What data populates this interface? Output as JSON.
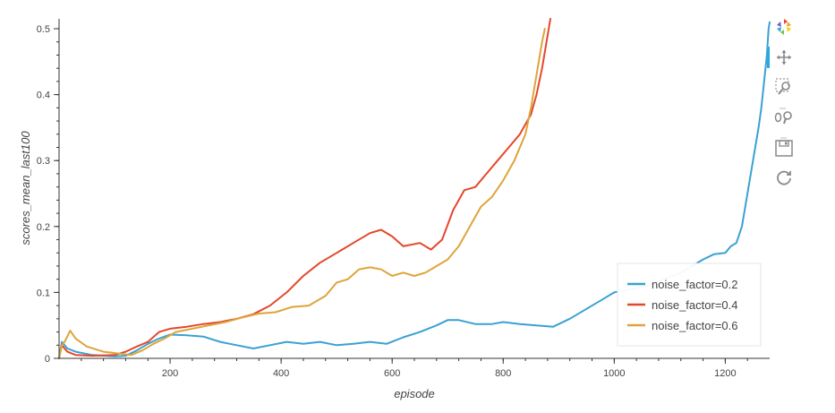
{
  "chart_data": {
    "type": "line",
    "title": "",
    "xlabel": "episode",
    "ylabel": "scores_mean_last100",
    "xlim": [
      0,
      1280
    ],
    "ylim": [
      0,
      0.515
    ],
    "x_ticks": [
      200,
      400,
      600,
      800,
      1000,
      1200
    ],
    "y_ticks": [
      0,
      0.1,
      0.2,
      0.3,
      0.4,
      0.5
    ],
    "x_tick_labels": [
      "200",
      "400",
      "600",
      "800",
      "1000",
      "1200"
    ],
    "y_tick_labels": [
      "0",
      "0.1",
      "0.2",
      "0.3",
      "0.4",
      "0.5"
    ],
    "grid": false,
    "legend_position": "bottom-right",
    "series": [
      {
        "name": "noise_factor=0.2",
        "color": "#3aa1d3",
        "x": [
          0,
          5,
          15,
          30,
          60,
          100,
          120,
          140,
          160,
          180,
          200,
          230,
          260,
          290,
          320,
          350,
          380,
          410,
          440,
          470,
          500,
          530,
          560,
          590,
          620,
          650,
          680,
          700,
          720,
          750,
          780,
          800,
          830,
          860,
          890,
          920,
          950,
          980,
          1000,
          1030,
          1060,
          1090,
          1120,
          1140,
          1160,
          1180,
          1200,
          1210,
          1220,
          1230,
          1240,
          1250,
          1260,
          1265,
          1270,
          1275,
          1278,
          1280
        ],
        "y": [
          0.0,
          0.025,
          0.015,
          0.01,
          0.005,
          0.003,
          0.004,
          0.012,
          0.022,
          0.03,
          0.036,
          0.035,
          0.033,
          0.025,
          0.02,
          0.015,
          0.02,
          0.025,
          0.022,
          0.025,
          0.02,
          0.022,
          0.025,
          0.022,
          0.032,
          0.04,
          0.05,
          0.058,
          0.058,
          0.052,
          0.052,
          0.055,
          0.052,
          0.05,
          0.048,
          0.06,
          0.075,
          0.09,
          0.1,
          0.105,
          0.11,
          0.12,
          0.13,
          0.14,
          0.15,
          0.158,
          0.16,
          0.17,
          0.175,
          0.2,
          0.25,
          0.3,
          0.35,
          0.38,
          0.42,
          0.46,
          0.5,
          0.51
        ]
      },
      {
        "name": "noise_factor=0.4",
        "color": "#e5472b",
        "x": [
          0,
          5,
          15,
          30,
          60,
          100,
          120,
          140,
          160,
          180,
          200,
          230,
          260,
          290,
          320,
          350,
          380,
          410,
          440,
          470,
          500,
          530,
          560,
          580,
          600,
          620,
          650,
          670,
          690,
          710,
          730,
          750,
          770,
          790,
          810,
          830,
          850,
          860,
          870,
          880,
          885
        ],
        "y": [
          0.0,
          0.02,
          0.01,
          0.005,
          0.004,
          0.005,
          0.01,
          0.018,
          0.025,
          0.04,
          0.045,
          0.048,
          0.052,
          0.055,
          0.06,
          0.067,
          0.08,
          0.1,
          0.125,
          0.145,
          0.16,
          0.175,
          0.19,
          0.195,
          0.185,
          0.17,
          0.175,
          0.165,
          0.18,
          0.225,
          0.255,
          0.26,
          0.28,
          0.3,
          0.32,
          0.34,
          0.37,
          0.4,
          0.44,
          0.49,
          0.515
        ]
      },
      {
        "name": "noise_factor=0.6",
        "color": "#dda53a",
        "x": [
          0,
          5,
          10,
          20,
          30,
          50,
          80,
          110,
          130,
          150,
          170,
          190,
          210,
          240,
          270,
          300,
          330,
          360,
          390,
          420,
          450,
          480,
          500,
          520,
          540,
          560,
          580,
          600,
          620,
          640,
          660,
          680,
          700,
          720,
          740,
          760,
          780,
          800,
          820,
          840,
          850,
          860,
          870,
          875
        ],
        "y": [
          0.0,
          0.02,
          0.025,
          0.042,
          0.03,
          0.018,
          0.01,
          0.007,
          0.005,
          0.012,
          0.022,
          0.03,
          0.04,
          0.045,
          0.05,
          0.055,
          0.062,
          0.068,
          0.07,
          0.078,
          0.08,
          0.095,
          0.115,
          0.12,
          0.135,
          0.138,
          0.135,
          0.125,
          0.13,
          0.125,
          0.13,
          0.14,
          0.15,
          0.17,
          0.2,
          0.23,
          0.245,
          0.27,
          0.3,
          0.34,
          0.38,
          0.43,
          0.48,
          0.5
        ]
      }
    ]
  },
  "toolbar": {
    "tools": [
      "bokeh-logo-icon",
      "pan-icon",
      "box-zoom-icon",
      "wheel-zoom-icon",
      "save-icon",
      "reset-icon"
    ]
  }
}
